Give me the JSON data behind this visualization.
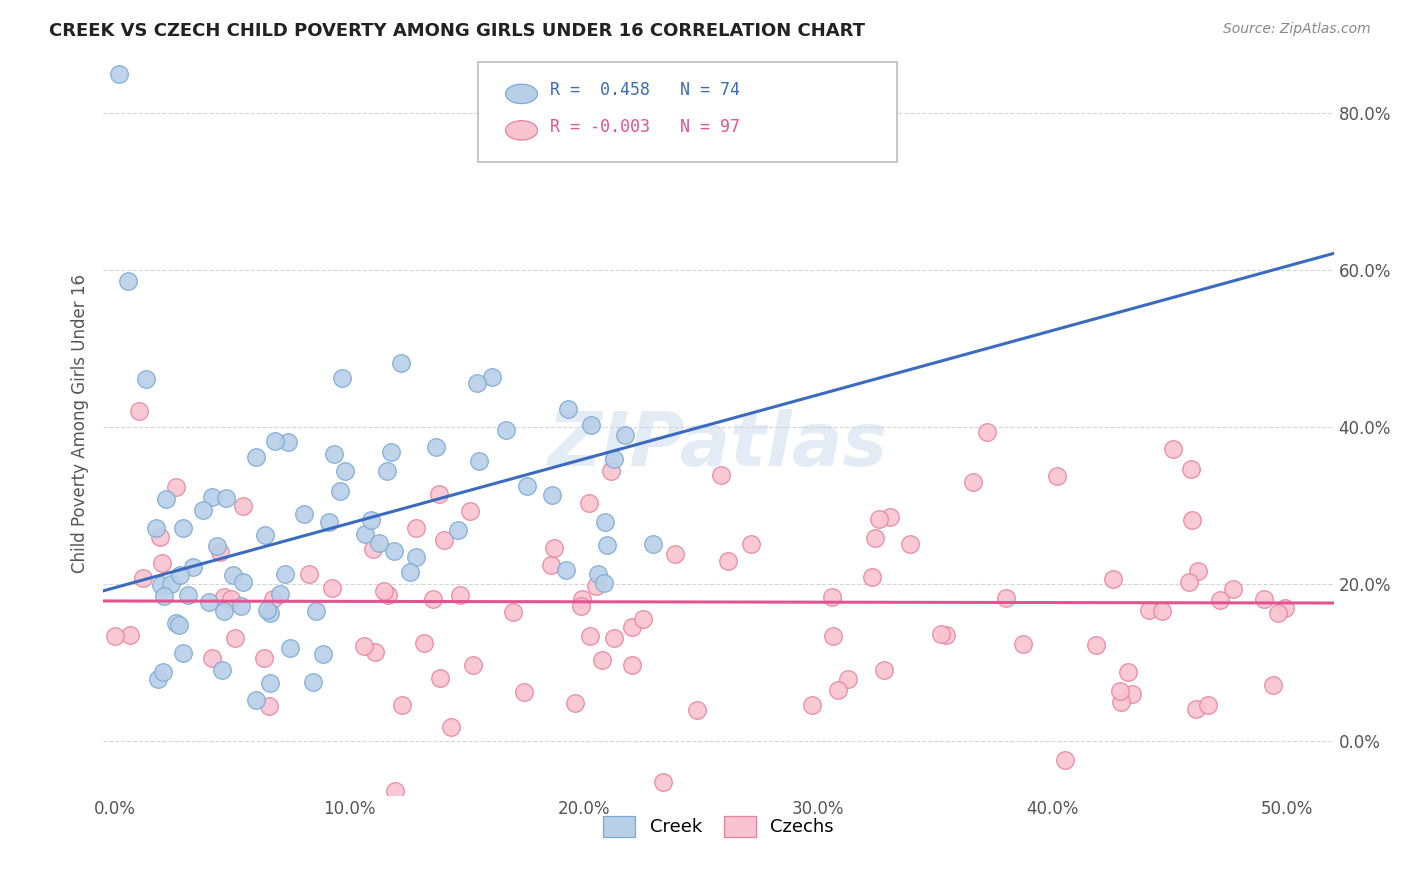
{
  "title": "CREEK VS CZECH CHILD POVERTY AMONG GIRLS UNDER 16 CORRELATION CHART",
  "source": "Source: ZipAtlas.com",
  "ylabel": "Child Poverty Among Girls Under 16",
  "xlabel_ticks": [
    "0.0%",
    "10.0%",
    "20.0%",
    "30.0%",
    "40.0%",
    "50.0%"
  ],
  "xlabel_vals": [
    0.0,
    0.1,
    0.2,
    0.3,
    0.4,
    0.5
  ],
  "ylabel_ticks": [
    "0.0%",
    "20.0%",
    "40.0%",
    "60.0%",
    "80.0%"
  ],
  "ylabel_vals": [
    0.0,
    0.2,
    0.4,
    0.6,
    0.8
  ],
  "xlim": [
    -0.005,
    0.52
  ],
  "ylim": [
    -0.07,
    0.88
  ],
  "creek_color": "#b8cfe8",
  "czech_color": "#f9c4d2",
  "creek_edge": "#7aaad4",
  "czech_edge": "#e8829a",
  "trend_creek_color": "#3a6bbf",
  "trend_czech_color": "#e05590",
  "creek_R": 0.458,
  "creek_N": 74,
  "czech_R": -0.003,
  "czech_N": 97,
  "watermark": "ZIPatlas",
  "creek_intercept": 0.195,
  "creek_slope": 0.82,
  "czech_intercept": 0.178,
  "czech_slope": -0.005
}
